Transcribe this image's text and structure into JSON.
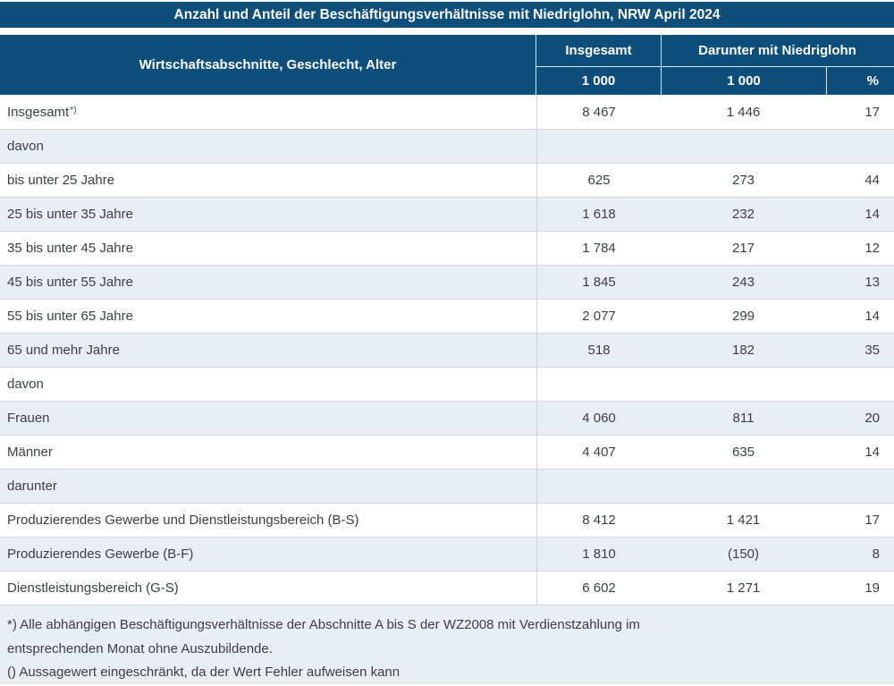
{
  "title": "Anzahl und Anteil der Beschäftigungsverhältnisse mit Niedriglohn, NRW April 2024",
  "header": {
    "col_label": "Wirtschaftsabschnitte, Geschlecht, Alter",
    "col_total": "Insgesamt",
    "col_lowwage_group": "Darunter mit Niedriglohn",
    "unit_total": "1 000",
    "unit_lowwage": "1 000",
    "unit_pct": "%"
  },
  "rows": [
    {
      "label": "Insgesamt",
      "sup": "*)",
      "total": "8 467",
      "lowwage": "1 446",
      "pct": "17"
    },
    {
      "label": "davon",
      "total": "",
      "lowwage": "",
      "pct": ""
    },
    {
      "label": "bis unter 25 Jahre",
      "total": "625",
      "lowwage": "273",
      "pct": "44"
    },
    {
      "label": "25 bis unter 35 Jahre",
      "total": "1 618",
      "lowwage": "232",
      "pct": "14"
    },
    {
      "label": "35 bis unter 45 Jahre",
      "total": "1 784",
      "lowwage": "217",
      "pct": "12"
    },
    {
      "label": "45 bis unter 55 Jahre",
      "total": "1 845",
      "lowwage": "243",
      "pct": "13"
    },
    {
      "label": "55 bis unter 65 Jahre",
      "total": "2 077",
      "lowwage": "299",
      "pct": "14"
    },
    {
      "label": "65 und mehr Jahre",
      "total": "518",
      "lowwage": "182",
      "pct": "35"
    },
    {
      "label": "davon",
      "total": "",
      "lowwage": "",
      "pct": ""
    },
    {
      "label": "Frauen",
      "total": "4 060",
      "lowwage": "811",
      "pct": "20"
    },
    {
      "label": "Männer",
      "total": "4 407",
      "lowwage": "635",
      "pct": "14"
    },
    {
      "label": "darunter",
      "total": "",
      "lowwage": "",
      "pct": ""
    },
    {
      "label": "Produzierendes Gewerbe und Dienstleistungsbereich (B-S)",
      "total": "8 412",
      "lowwage": "1 421",
      "pct": "17"
    },
    {
      "label": "Produzierendes Gewerbe (B-F)",
      "total": "1 810",
      "lowwage": "(150)",
      "pct": "8"
    },
    {
      "label": "Dienstleistungsbereich (G-S)",
      "total": "6 602",
      "lowwage": "1 271",
      "pct": "19"
    }
  ],
  "footnotes": [
    "*) Alle abhängigen Beschäftigungsverhältnisse der Abschnitte A bis S der WZ2008 mit Verdienstzahlung im",
    "entsprechenden Monat ohne Auszubildende.",
    "() Aussagewert eingeschränkt, da der Wert Fehler aufweisen kann"
  ],
  "colors": {
    "header_bg": "#0d4e7b",
    "header_text": "#ffffff",
    "alt_row_bg": "#e9edf4",
    "footnote_bg": "#e9edf4",
    "row_border": "#d5d9de",
    "body_text": "#3c4043"
  }
}
